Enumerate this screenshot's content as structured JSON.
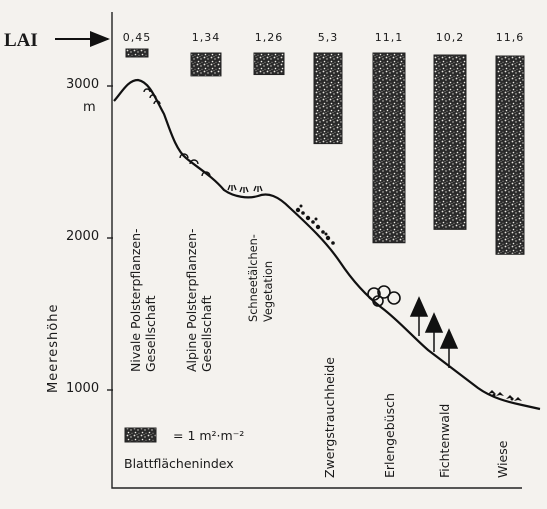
{
  "lai_marker": "LAI",
  "y_axis": {
    "title": "Meereshöhe",
    "unit": "m",
    "ticks": [
      {
        "label": "3000",
        "value": 3000
      },
      {
        "label": "2000",
        "value": 2000
      },
      {
        "label": "1000",
        "value": 1000
      }
    ]
  },
  "zones": [
    {
      "label": "Nivale Polsterpflanzen-\nGesellschaft",
      "lai_label": "0,45",
      "lai": 0.45
    },
    {
      "label": "Alpine Polsterpflanzen-\nGesellschaft",
      "lai_label": "1,34",
      "lai": 1.34
    },
    {
      "label": "Schneetälchen-\nVegetation",
      "lai_label": "1,26",
      "lai": 1.26
    },
    {
      "label": "Zwergstrauchheide",
      "lai_label": "5,3",
      "lai": 5.3
    },
    {
      "label": "Erlengebüsch",
      "lai_label": "11,1",
      "lai": 11.1
    },
    {
      "label": "Fichtenwald",
      "lai_label": "10,2",
      "lai": 10.2
    },
    {
      "label": "Wiese",
      "lai_label": "11,6",
      "lai": 11.6
    }
  ],
  "legend": {
    "scale_text": "= 1 m²·m⁻²",
    "title": "Blattflächenindex"
  }
}
